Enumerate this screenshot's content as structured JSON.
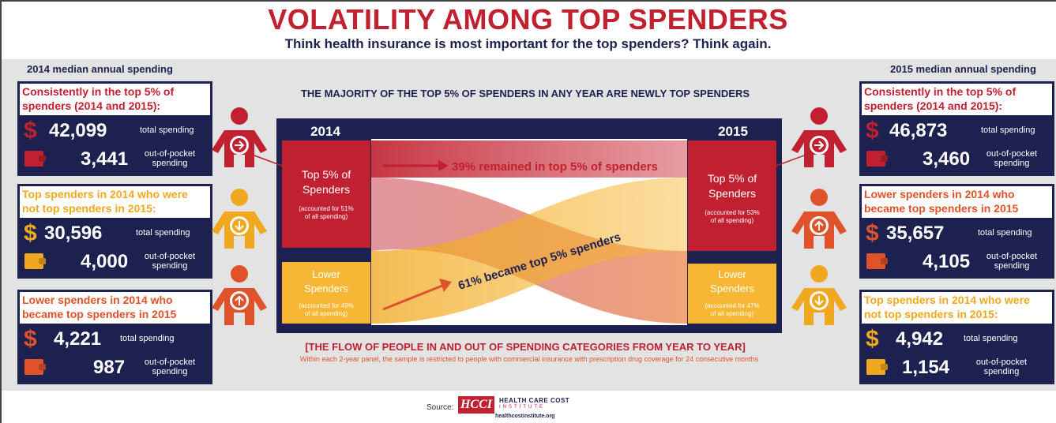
{
  "title": "VOLATILITY AMONG TOP SPENDERS",
  "subtitle": "Think health insurance is most important for the top spenders? Think again.",
  "left_heading": "2014 median annual spending",
  "right_heading": "2015 median annual spending",
  "center_heading": "THE MAJORITY OF THE TOP 5% OF SPENDERS IN ANY YEAR ARE NEWLY TOP SPENDERS",
  "left_cards": [
    {
      "header": "Consistently in the top 5% of spenders (2014 and 2015):",
      "dollar": "$",
      "total": "42,099",
      "total_label": "total spending",
      "oop": "3,441",
      "oop_label": "out-of-pocket spending"
    },
    {
      "header": "Top spenders in 2014 who were not top spenders in 2015:",
      "dollar": "$",
      "total": "30,596",
      "total_label": "total spending",
      "oop": "4,000",
      "oop_label": "out-of-pocket spending"
    },
    {
      "header": "Lower spenders in 2014 who became top spenders in 2015",
      "dollar": "$",
      "total": "4,221",
      "total_label": "total spending",
      "oop": "987",
      "oop_label": "out-of-pocket spending"
    }
  ],
  "right_cards": [
    {
      "header": "Consistently in the top 5% of spenders (2014 and 2015):",
      "dollar": "$",
      "total": "46,873",
      "total_label": "total spending",
      "oop": "3,460",
      "oop_label": "out-of-pocket spending"
    },
    {
      "header": "Lower spenders in 2014 who became top spenders in 2015",
      "dollar": "$",
      "total": "35,657",
      "total_label": "total spending",
      "oop": "4,105",
      "oop_label": "out-of-pocket spending"
    },
    {
      "header": "Top spenders in 2014 who were not top spenders in 2015:",
      "dollar": "$",
      "total": "4,942",
      "total_label": "total spending",
      "oop": "1,154",
      "oop_label": "out-of-pocket spending"
    }
  ],
  "flow": {
    "year_left": "2014",
    "year_right": "2015",
    "top_box_title": "Top 5% of Spenders",
    "left_top_note": "(accounted for 51% of all spending)",
    "right_top_note": "(accounted for 53% of all spending)",
    "lower_box_title": "Lower Spenders",
    "left_lower_note": "(accounted for 49% of all spending)",
    "right_lower_note": "(accounted for 47% of all spending)",
    "remained_label": "39% remained in top 5% of spenders",
    "became_label": "61% became top 5% spenders",
    "remained_pct": 39,
    "became_pct": 61
  },
  "flow_title": "[THE FLOW OF PEOPLE IN AND OUT OF SPENDING CATEGORIES FROM YEAR TO YEAR]",
  "flow_note": "Within each 2-year panel, the sample is restricted to people with commercial insurance with prescription drug coverage for 24 consecutive months",
  "source_label": "Source:",
  "logo_text": "HCCI",
  "logo_name": "HEALTH CARE COST",
  "logo_sub": "INSTITUTE",
  "logo_url": "healthcostinstitute.org",
  "colors": {
    "navy": "#1c2150",
    "red": "#c0202f",
    "gold": "#f0a81e",
    "orange": "#e0532a",
    "light_gold": "#f7b733"
  }
}
